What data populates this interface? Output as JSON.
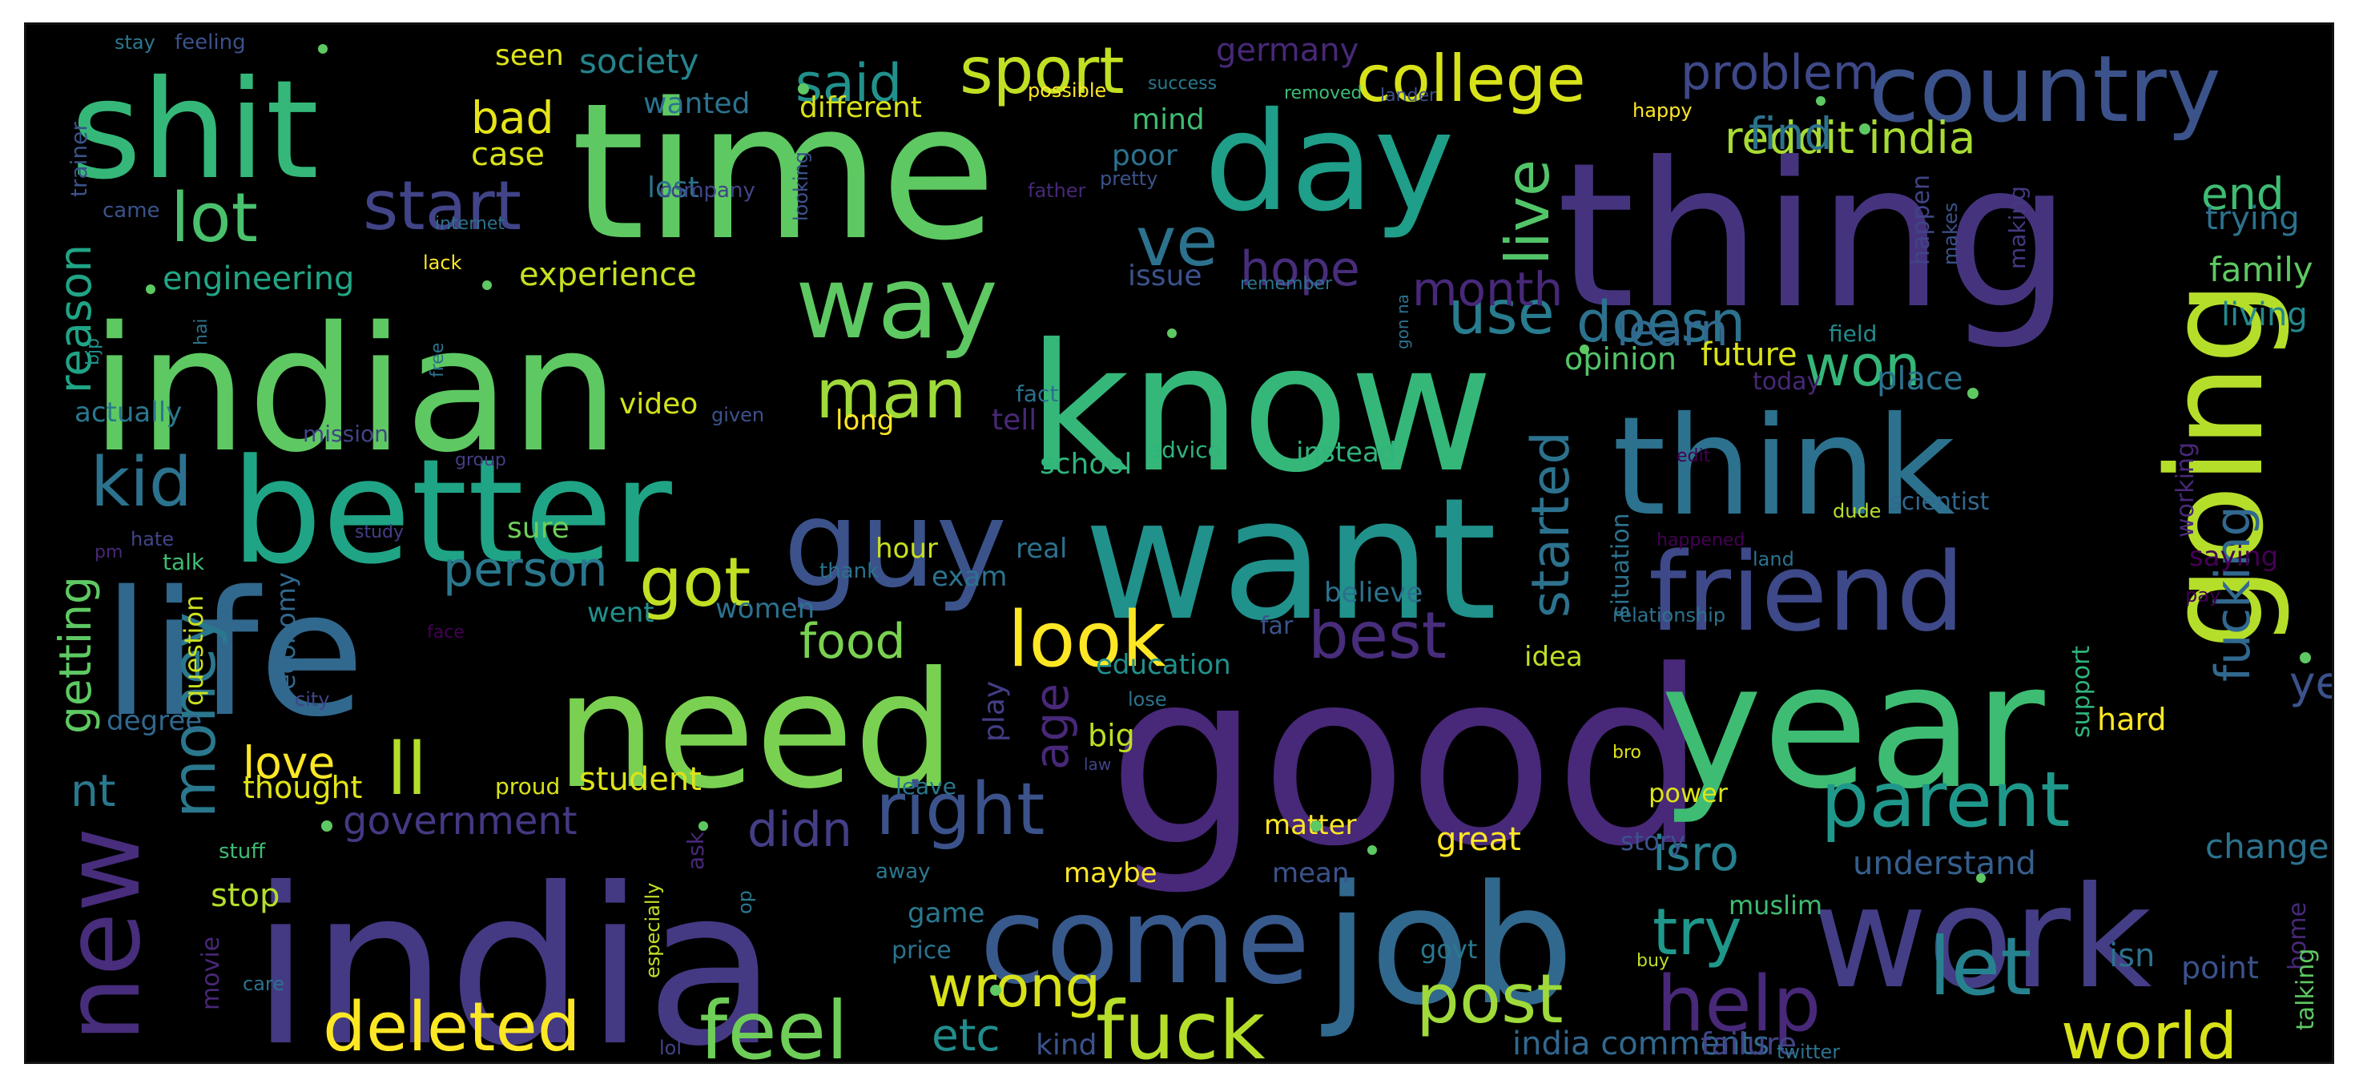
{
  "cloud": {
    "words": [
      {
        "t": "good",
        "c": "#482878"
      },
      {
        "t": "india",
        "c": "#443983"
      },
      {
        "t": "know",
        "c": "#35b779"
      },
      {
        "t": "want",
        "c": "#21918c"
      },
      {
        "t": "time",
        "c": "#5ec962"
      },
      {
        "t": "thing",
        "c": "#46337e"
      },
      {
        "t": "indian",
        "c": "#5ec962"
      },
      {
        "t": "life",
        "c": "#31688e"
      },
      {
        "t": "year",
        "c": "#3fbc73"
      },
      {
        "t": "think",
        "c": "#2c728e"
      },
      {
        "t": "job",
        "c": "#31688e"
      },
      {
        "t": "need",
        "c": "#7ad151"
      },
      {
        "t": "better",
        "c": "#20a486"
      },
      {
        "t": "work",
        "c": "#433e85"
      },
      {
        "t": "shit",
        "c": "#35b779"
      },
      {
        "t": "day",
        "c": "#1f9e89"
      },
      {
        "t": "going",
        "c": "#b5de2b"
      },
      {
        "t": "guy",
        "c": "#3b528b"
      },
      {
        "t": "come",
        "c": "#38598c"
      },
      {
        "t": "friend",
        "c": "#3e4989"
      },
      {
        "t": "country",
        "c": "#3b528b"
      },
      {
        "t": "new",
        "c": "#472d7b"
      },
      {
        "t": "way",
        "c": "#5ec962"
      },
      {
        "t": "parent",
        "c": "#1f988b"
      },
      {
        "t": "look",
        "c": "#fde725"
      },
      {
        "t": "feel",
        "c": "#6ece58"
      },
      {
        "t": "fuck",
        "c": "#b5de2b"
      },
      {
        "t": "right",
        "c": "#3b528b"
      },
      {
        "t": "post",
        "c": "#9fda3a"
      },
      {
        "t": "deleted",
        "c": "#fde725"
      },
      {
        "t": "college",
        "c": "#d8e219"
      },
      {
        "t": "help",
        "c": "#482878"
      },
      {
        "t": "let",
        "c": "#26828e"
      },
      {
        "t": "world",
        "c": "#d8e219"
      },
      {
        "t": "lot",
        "c": "#4ac16d"
      },
      {
        "t": "start",
        "c": "#414487"
      },
      {
        "t": "man",
        "c": "#9fda3a"
      },
      {
        "t": "got",
        "c": "#c2df23"
      },
      {
        "t": "best",
        "c": "#472d7b"
      },
      {
        "t": "kid",
        "c": "#2c728e"
      },
      {
        "t": "money",
        "c": "#2a788e"
      },
      {
        "t": "ll",
        "c": "#b5de2b"
      },
      {
        "t": "try",
        "c": "#1f988b"
      },
      {
        "t": "wrong",
        "c": "#d8e219"
      },
      {
        "t": "sport",
        "c": "#c2df23"
      },
      {
        "t": "ve",
        "c": "#2c728e"
      },
      {
        "t": "live",
        "c": "#52c569"
      },
      {
        "t": "started",
        "c": "#2c728e"
      },
      {
        "t": "fucking",
        "c": "#31688e"
      },
      {
        "t": "use",
        "c": "#287c8e"
      },
      {
        "t": "doesn",
        "c": "#2c728e"
      },
      {
        "t": "won",
        "c": "#35b779"
      },
      {
        "t": "problem",
        "c": "#3e4989"
      },
      {
        "t": "reddit india",
        "c": "#a8db34"
      },
      {
        "t": "said",
        "c": "#21918c"
      },
      {
        "t": "food",
        "c": "#7ad151"
      },
      {
        "t": "person",
        "c": "#2a788e"
      },
      {
        "t": "hope",
        "c": "#472d7b"
      },
      {
        "t": "month",
        "c": "#482878"
      },
      {
        "t": "age",
        "c": "#482878"
      },
      {
        "t": "love",
        "c": "#fde725"
      },
      {
        "t": "didn",
        "c": "#433e85"
      },
      {
        "t": "isro",
        "c": "#277f8e"
      },
      {
        "t": "etc",
        "c": "#228d8d"
      },
      {
        "t": "nt",
        "c": "#2a788e"
      },
      {
        "t": "getting",
        "c": "#5ec962"
      },
      {
        "t": "reason",
        "c": "#20a486"
      },
      {
        "t": "bad",
        "c": "#e5e419"
      },
      {
        "t": "find",
        "c": "#2c728e"
      },
      {
        "t": "end",
        "c": "#3fbc73"
      },
      {
        "t": "learn",
        "c": "#31688e"
      },
      {
        "t": "ye",
        "c": "#3b528b"
      },
      {
        "t": "government",
        "c": "#443983"
      },
      {
        "t": "experience",
        "c": "#c8e020"
      },
      {
        "t": "engineering",
        "c": "#21a685"
      },
      {
        "t": "society",
        "c": "#25848e"
      },
      {
        "t": "germany",
        "c": "#482878"
      },
      {
        "t": "change",
        "c": "#2c728e"
      },
      {
        "t": "understand",
        "c": "#355f8d"
      },
      {
        "t": "family",
        "c": "#5ec962"
      },
      {
        "t": "trying",
        "c": "#2c728e"
      },
      {
        "t": "living",
        "c": "#23898e"
      },
      {
        "t": "place",
        "c": "#2c728e"
      },
      {
        "t": "future",
        "c": "#d8e219"
      },
      {
        "t": "opinion",
        "c": "#52c569"
      },
      {
        "t": "great",
        "c": "#fde725"
      },
      {
        "t": "india comments",
        "c": "#31688e"
      },
      {
        "t": "failure",
        "c": "#414487"
      },
      {
        "t": "hard",
        "c": "#fde725"
      },
      {
        "t": "student",
        "c": "#dde318"
      },
      {
        "t": "thought",
        "c": "#e2e418"
      },
      {
        "t": "big",
        "c": "#bddf26"
      },
      {
        "t": "school",
        "c": "#2fb47c"
      },
      {
        "t": "video",
        "c": "#d2e21b"
      },
      {
        "t": "case",
        "c": "#d8e219"
      },
      {
        "t": "mind",
        "c": "#3fbc73"
      },
      {
        "t": "poor",
        "c": "#2c728e"
      },
      {
        "t": "lost",
        "c": "#2c728e"
      },
      {
        "t": "issue",
        "c": "#3b528b"
      },
      {
        "t": "different",
        "c": "#d8e219"
      },
      {
        "t": "wanted",
        "c": "#2c728e"
      },
      {
        "t": "seen",
        "c": "#dde318"
      },
      {
        "t": "actually",
        "c": "#2a788e"
      },
      {
        "t": "tell",
        "c": "#482878"
      },
      {
        "t": "long",
        "c": "#fde725"
      },
      {
        "t": "sure",
        "c": "#6ece58"
      },
      {
        "t": "hour",
        "c": "#c8e020"
      },
      {
        "t": "exam",
        "c": "#2c728e"
      },
      {
        "t": "real",
        "c": "#2c728e"
      },
      {
        "t": "believe",
        "c": "#2c728e"
      },
      {
        "t": "education",
        "c": "#21918c"
      },
      {
        "t": "idea",
        "c": "#bddf26"
      },
      {
        "t": "play",
        "c": "#433e85"
      },
      {
        "t": "women",
        "c": "#2c728e"
      },
      {
        "t": "went",
        "c": "#21918c"
      },
      {
        "t": "question",
        "c": "#cde11d"
      },
      {
        "t": "economy",
        "c": "#31688e"
      },
      {
        "t": "degree",
        "c": "#31688e"
      },
      {
        "t": "matter",
        "c": "#fde725"
      },
      {
        "t": "mean",
        "c": "#3b528b"
      },
      {
        "t": "maybe",
        "c": "#fde725"
      },
      {
        "t": "stop",
        "c": "#b5de2b"
      },
      {
        "t": "game",
        "c": "#2a788e"
      },
      {
        "t": "price",
        "c": "#2c728e"
      },
      {
        "t": "kind",
        "c": "#3b528b"
      },
      {
        "t": "movie",
        "c": "#482878"
      },
      {
        "t": "situation",
        "c": "#2c728e"
      },
      {
        "t": "support",
        "c": "#2fb47c"
      },
      {
        "t": "muslim",
        "c": "#3fbc73"
      },
      {
        "t": "isn",
        "c": "#2c728e"
      },
      {
        "t": "point",
        "c": "#3b528b"
      },
      {
        "t": "home",
        "c": "#482878"
      },
      {
        "t": "talking",
        "c": "#5ec962"
      },
      {
        "t": "saying",
        "c": "#440154"
      },
      {
        "t": "working",
        "c": "#482878"
      },
      {
        "t": "scientist",
        "c": "#31688e"
      },
      {
        "t": "power",
        "c": "#dde318"
      },
      {
        "t": "story",
        "c": "#3b528b"
      },
      {
        "t": "govt",
        "c": "#2a788e"
      },
      {
        "t": "happen",
        "c": "#414487"
      },
      {
        "t": "making",
        "c": "#443983"
      },
      {
        "t": "field",
        "c": "#238a8d"
      },
      {
        "t": "today",
        "c": "#482878"
      },
      {
        "t": "instead",
        "c": "#2fb47c"
      },
      {
        "t": "advice",
        "c": "#2fb47c"
      },
      {
        "t": "fact",
        "c": "#2c728e"
      },
      {
        "t": "mission",
        "c": "#414487"
      },
      {
        "t": "given",
        "c": "#3b528b"
      },
      {
        "t": "talk",
        "c": "#3fbc73"
      },
      {
        "t": "thank",
        "c": "#2c728e"
      },
      {
        "t": "far",
        "c": "#3b528b"
      },
      {
        "t": "stuff",
        "c": "#3fbc73"
      },
      {
        "t": "city",
        "c": "#414487"
      },
      {
        "t": "proud",
        "c": "#d8e219"
      },
      {
        "t": "ask",
        "c": "#482878"
      },
      {
        "t": "especially",
        "c": "#c2df23"
      },
      {
        "t": "op",
        "c": "#2a788e"
      },
      {
        "t": "away",
        "c": "#2a788e"
      },
      {
        "t": "leave",
        "c": "#2a788e"
      },
      {
        "t": "lose",
        "c": "#2c728e"
      },
      {
        "t": "law",
        "c": "#414487"
      },
      {
        "t": "care",
        "c": "#2c728e"
      },
      {
        "t": "lol",
        "c": "#414487"
      },
      {
        "t": "buy",
        "c": "#bddf26"
      },
      {
        "t": "bro",
        "c": "#dde318"
      },
      {
        "t": "twitter",
        "c": "#2c728e"
      },
      {
        "t": "pay",
        "c": "#440154"
      },
      {
        "t": "land",
        "c": "#2c728e"
      },
      {
        "t": "dude",
        "c": "#b5de2b"
      },
      {
        "t": "happened",
        "c": "#440154"
      },
      {
        "t": "relationship",
        "c": "#2c728e"
      },
      {
        "t": "edit",
        "c": "#440154"
      },
      {
        "t": "face",
        "c": "#440154"
      },
      {
        "t": "pm",
        "c": "#482878"
      },
      {
        "t": "hate",
        "c": "#414487"
      },
      {
        "t": "study",
        "c": "#433e85"
      },
      {
        "t": "group",
        "c": "#433e85"
      },
      {
        "t": "free",
        "c": "#2c728e"
      },
      {
        "t": "hai",
        "c": "#2c728e"
      },
      {
        "t": "bjp",
        "c": "#21918c"
      },
      {
        "t": "lack",
        "c": "#fde725"
      },
      {
        "t": "gon na",
        "c": "#2c728e"
      },
      {
        "t": "remember",
        "c": "#2c728e"
      },
      {
        "t": "internet",
        "c": "#2c728e"
      },
      {
        "t": "came",
        "c": "#3b528b"
      },
      {
        "t": "company",
        "c": "#414487"
      },
      {
        "t": "father",
        "c": "#482878"
      },
      {
        "t": "pretty",
        "c": "#3b528b"
      },
      {
        "t": "looking",
        "c": "#3b528b"
      },
      {
        "t": "makes",
        "c": "#3b528b"
      },
      {
        "t": "trainer",
        "c": "#3b528b"
      },
      {
        "t": "stay",
        "c": "#2a788e"
      },
      {
        "t": "feeling",
        "c": "#3b528b"
      },
      {
        "t": "success",
        "c": "#2a788e"
      },
      {
        "t": "possible",
        "c": "#fde725"
      },
      {
        "t": "removed",
        "c": "#3fbc73"
      },
      {
        "t": "lander",
        "c": "#3b528b"
      },
      {
        "t": "happy",
        "c": "#fde725"
      }
    ]
  }
}
